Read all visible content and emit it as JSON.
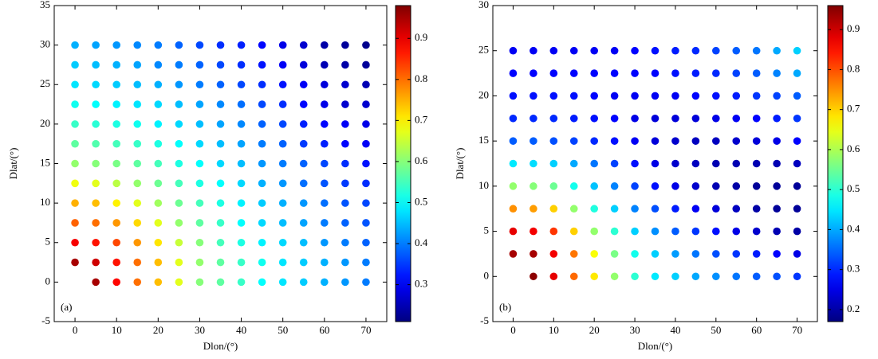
{
  "chart_data": [
    {
      "type": "scatter",
      "label": "(a)",
      "x_label": "Dlon/(°)",
      "y_label": "Dlat/(°)",
      "colormap": "jet",
      "xlim": [
        -5,
        75
      ],
      "xticks": [
        0,
        10,
        20,
        30,
        40,
        50,
        60,
        70
      ],
      "ylim": [
        -5,
        35
      ],
      "yticks": [
        -5,
        0,
        5,
        10,
        15,
        20,
        25,
        30,
        35
      ],
      "clim": [
        0.21,
        0.98
      ],
      "cticks": [
        0.3,
        0.4,
        0.5,
        0.6,
        0.7,
        0.8,
        0.9
      ],
      "x": [
        0,
        5,
        10,
        15,
        20,
        25,
        30,
        35,
        40,
        45,
        50,
        55,
        60,
        65,
        70
      ],
      "y": [
        0,
        2.5,
        5,
        7.5,
        10,
        12.5,
        15,
        17.5,
        20,
        22.5,
        25,
        27.5,
        30
      ],
      "values": [
        [
          null,
          0.95,
          0.88,
          0.8,
          0.74,
          0.67,
          0.6,
          0.57,
          0.54,
          0.5,
          0.48,
          0.46,
          0.44,
          0.42,
          0.4
        ],
        [
          0.95,
          0.92,
          0.87,
          0.8,
          0.74,
          0.67,
          0.61,
          0.57,
          0.54,
          0.51,
          0.48,
          0.46,
          0.44,
          0.42,
          0.4
        ],
        [
          0.89,
          0.87,
          0.83,
          0.77,
          0.71,
          0.65,
          0.6,
          0.55,
          0.52,
          0.49,
          0.47,
          0.45,
          0.42,
          0.4,
          0.38
        ],
        [
          0.81,
          0.8,
          0.77,
          0.72,
          0.67,
          0.61,
          0.57,
          0.54,
          0.5,
          0.47,
          0.45,
          0.43,
          0.4,
          0.38,
          0.37
        ],
        [
          0.75,
          0.74,
          0.7,
          0.67,
          0.62,
          0.58,
          0.55,
          0.52,
          0.49,
          0.46,
          0.44,
          0.42,
          0.39,
          0.37,
          0.36
        ],
        [
          0.68,
          0.67,
          0.64,
          0.61,
          0.58,
          0.55,
          0.52,
          0.5,
          0.47,
          0.44,
          0.42,
          0.39,
          0.37,
          0.35,
          0.34
        ],
        [
          0.61,
          0.6,
          0.59,
          0.57,
          0.55,
          0.52,
          0.5,
          0.47,
          0.45,
          0.42,
          0.4,
          0.38,
          0.36,
          0.34,
          0.32
        ],
        [
          0.57,
          0.56,
          0.55,
          0.54,
          0.52,
          0.5,
          0.47,
          0.45,
          0.43,
          0.4,
          0.38,
          0.35,
          0.33,
          0.31,
          0.3
        ],
        [
          0.54,
          0.53,
          0.52,
          0.51,
          0.49,
          0.47,
          0.45,
          0.43,
          0.41,
          0.38,
          0.36,
          0.33,
          0.31,
          0.3,
          0.29
        ],
        [
          0.51,
          0.5,
          0.49,
          0.48,
          0.47,
          0.45,
          0.43,
          0.41,
          0.39,
          0.36,
          0.34,
          0.31,
          0.29,
          0.27,
          0.27
        ],
        [
          0.48,
          0.47,
          0.46,
          0.45,
          0.44,
          0.42,
          0.4,
          0.38,
          0.36,
          0.34,
          0.32,
          0.3,
          0.28,
          0.27,
          0.25
        ],
        [
          0.46,
          0.45,
          0.44,
          0.43,
          0.41,
          0.4,
          0.38,
          0.36,
          0.34,
          0.32,
          0.3,
          0.28,
          0.25,
          0.24,
          0.23
        ],
        [
          0.44,
          0.43,
          0.42,
          0.41,
          0.4,
          0.38,
          0.36,
          0.34,
          0.33,
          0.31,
          0.29,
          0.27,
          0.24,
          0.23,
          0.22
        ]
      ]
    },
    {
      "type": "scatter",
      "label": "(b)",
      "x_label": "Dlon/(°)",
      "y_label": "Dlat/(°)",
      "colormap": "jet",
      "xlim": [
        -5,
        75
      ],
      "xticks": [
        0,
        10,
        20,
        30,
        40,
        50,
        60,
        70
      ],
      "ylim": [
        -5,
        30
      ],
      "yticks": [
        -5,
        0,
        5,
        10,
        15,
        20,
        25,
        30
      ],
      "clim": [
        0.17,
        0.96
      ],
      "cticks": [
        0.2,
        0.3,
        0.4,
        0.5,
        0.6,
        0.7,
        0.8,
        0.9
      ],
      "x": [
        0,
        5,
        10,
        15,
        20,
        25,
        30,
        35,
        40,
        45,
        50,
        55,
        60,
        65,
        70
      ],
      "y": [
        0,
        2.5,
        5,
        7.5,
        10,
        12.5,
        15,
        17.5,
        20,
        22.5,
        25
      ],
      "values": [
        [
          null,
          0.95,
          0.88,
          0.78,
          0.68,
          0.58,
          0.5,
          0.45,
          0.43,
          0.4,
          0.38,
          0.36,
          0.34,
          0.33,
          0.31
        ],
        [
          0.93,
          0.93,
          0.87,
          0.77,
          0.66,
          0.56,
          0.48,
          0.43,
          0.39,
          0.36,
          0.33,
          0.31,
          0.29,
          0.27,
          0.25
        ],
        [
          0.88,
          0.87,
          0.82,
          0.7,
          0.58,
          0.5,
          0.43,
          0.38,
          0.34,
          0.31,
          0.28,
          0.25,
          0.23,
          0.21,
          0.2
        ],
        [
          0.75,
          0.74,
          0.7,
          0.58,
          0.49,
          0.43,
          0.37,
          0.33,
          0.29,
          0.26,
          0.24,
          0.22,
          0.2,
          0.19,
          0.19
        ],
        [
          0.58,
          0.57,
          0.55,
          0.48,
          0.42,
          0.37,
          0.32,
          0.28,
          0.25,
          0.23,
          0.21,
          0.2,
          0.19,
          0.19,
          0.19
        ],
        [
          0.45,
          0.44,
          0.43,
          0.4,
          0.36,
          0.32,
          0.28,
          0.25,
          0.23,
          0.22,
          0.21,
          0.21,
          0.21,
          0.21,
          0.22
        ],
        [
          0.34,
          0.34,
          0.33,
          0.32,
          0.3,
          0.28,
          0.26,
          0.24,
          0.23,
          0.22,
          0.22,
          0.23,
          0.24,
          0.25,
          0.27
        ],
        [
          0.3,
          0.3,
          0.3,
          0.29,
          0.28,
          0.27,
          0.25,
          0.24,
          0.24,
          0.24,
          0.25,
          0.26,
          0.27,
          0.29,
          0.31
        ],
        [
          0.28,
          0.28,
          0.28,
          0.28,
          0.27,
          0.26,
          0.26,
          0.26,
          0.26,
          0.27,
          0.28,
          0.29,
          0.31,
          0.32,
          0.34
        ],
        [
          0.27,
          0.27,
          0.27,
          0.27,
          0.27,
          0.27,
          0.27,
          0.27,
          0.28,
          0.29,
          0.3,
          0.32,
          0.34,
          0.37,
          0.4
        ],
        [
          0.26,
          0.26,
          0.26,
          0.26,
          0.26,
          0.26,
          0.27,
          0.28,
          0.29,
          0.3,
          0.32,
          0.34,
          0.36,
          0.4,
          0.43
        ]
      ]
    }
  ]
}
